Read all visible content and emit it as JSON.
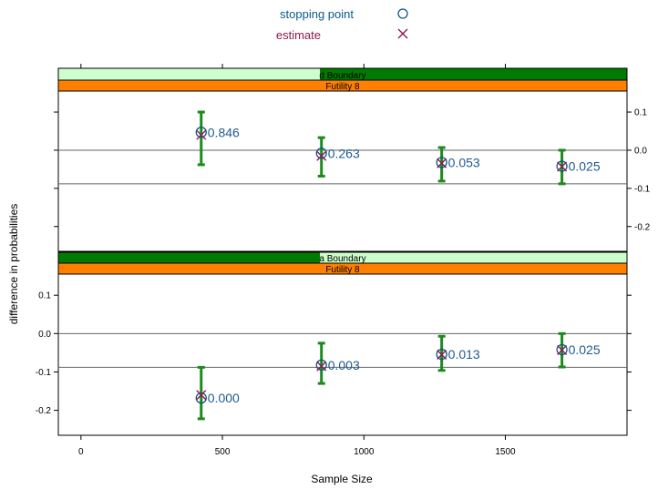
{
  "legend": {
    "items": [
      {
        "label": "stopping point",
        "symbol": "circle",
        "color": "#0a5a8a"
      },
      {
        "label": "estimate",
        "symbol": "x",
        "color": "#8b1a4f"
      }
    ]
  },
  "chart_data": {
    "type": "scatter",
    "xlabel": "Sample Size",
    "ylabel": "difference in probabilities",
    "xlim": [
      -80,
      1930
    ],
    "ylim": [
      -0.265,
      0.155
    ],
    "xticks": [
      0,
      500,
      1000,
      1500
    ],
    "yticks": [
      0.1,
      0.0,
      -0.1,
      -0.2
    ],
    "ytick_labels": [
      "0.1",
      "0.0",
      "-0.1",
      "-0.2"
    ],
    "grid": false,
    "colors": {
      "stopping_point": "#0a5a8a",
      "estimate": "#8b1a4f",
      "interval": "#1c8a1c",
      "strip_light": "#ccffcc",
      "strip_dark": "#007a00",
      "strip_orange": "#ff7f00",
      "label": "#1f5a8f",
      "reference_line": "#666666"
    },
    "panels": [
      {
        "strip_top": "d Boundary",
        "strip_bottom": "Futility 8",
        "dark_fill_from": 0.46,
        "dark_fill_to": 1.0,
        "reference_lines": [
          0.0,
          -0.088
        ],
        "points": [
          {
            "x": 425,
            "stop": 0.047,
            "estimate": 0.04,
            "lower": -0.038,
            "upper": 0.1,
            "label": "0.846"
          },
          {
            "x": 850,
            "stop": -0.008,
            "estimate": -0.015,
            "lower": -0.068,
            "upper": 0.033,
            "label": "0.263"
          },
          {
            "x": 1275,
            "stop": -0.032,
            "estimate": -0.034,
            "lower": -0.081,
            "upper": 0.007,
            "label": "0.053"
          },
          {
            "x": 1700,
            "stop": -0.042,
            "estimate": -0.043,
            "lower": -0.088,
            "upper": 0.0,
            "label": "0.025"
          }
        ]
      },
      {
        "strip_top": "a Boundary",
        "strip_bottom": "Futility 8",
        "dark_fill_from": 0.0,
        "dark_fill_to": 0.46,
        "reference_lines": [
          0.0,
          -0.088
        ],
        "points": [
          {
            "x": 425,
            "stop": -0.168,
            "estimate": -0.16,
            "lower": -0.222,
            "upper": -0.088,
            "label": "0.000"
          },
          {
            "x": 850,
            "stop": -0.082,
            "estimate": -0.085,
            "lower": -0.13,
            "upper": -0.025,
            "label": "0.003"
          },
          {
            "x": 1275,
            "stop": -0.054,
            "estimate": -0.055,
            "lower": -0.096,
            "upper": -0.007,
            "label": "0.013"
          },
          {
            "x": 1700,
            "stop": -0.042,
            "estimate": -0.043,
            "lower": -0.087,
            "upper": 0.0,
            "label": "0.025"
          }
        ]
      }
    ]
  }
}
